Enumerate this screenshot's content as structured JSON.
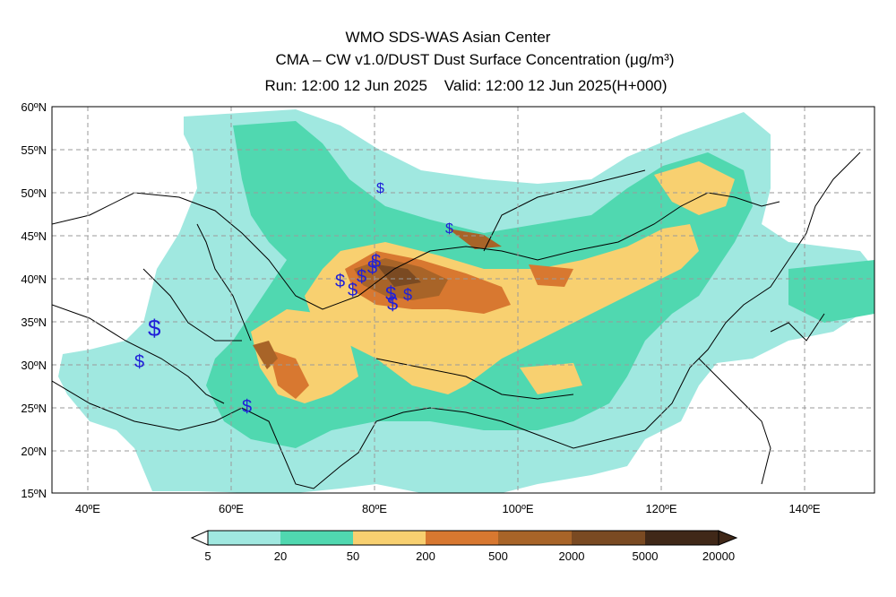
{
  "header": {
    "line1": "WMO SDS-WAS Asian Center",
    "line2": "CMA – CW v1.0/DUST Dust Surface Concentration (μg/m³)",
    "line3": "Run: 12:00 12 Jun 2025    Valid: 12:00 12 Jun 2025(H+000)"
  },
  "map": {
    "lon_range": [
      35,
      150
    ],
    "lat_range": [
      15,
      60
    ],
    "lat_labels": [
      "60ºN",
      "55ºN",
      "50ºN",
      "45ºN",
      "40ºN",
      "35ºN",
      "30ºN",
      "25ºN",
      "20ºN",
      "15ºN"
    ],
    "lon_labels": [
      "40ºE",
      "60ºE",
      "80ºE",
      "100ºE",
      "120ºE",
      "140ºE"
    ],
    "grid": true,
    "station_marker": "$"
  },
  "colorbar": {
    "labels": [
      "5",
      "20",
      "50",
      "200",
      "500",
      "2000",
      "5000",
      "20000"
    ],
    "colors": [
      "#a0e8e0",
      "#50d8b0",
      "#f8d070",
      "#d87830",
      "#a86428",
      "#7a4a22",
      "#402818"
    ]
  }
}
